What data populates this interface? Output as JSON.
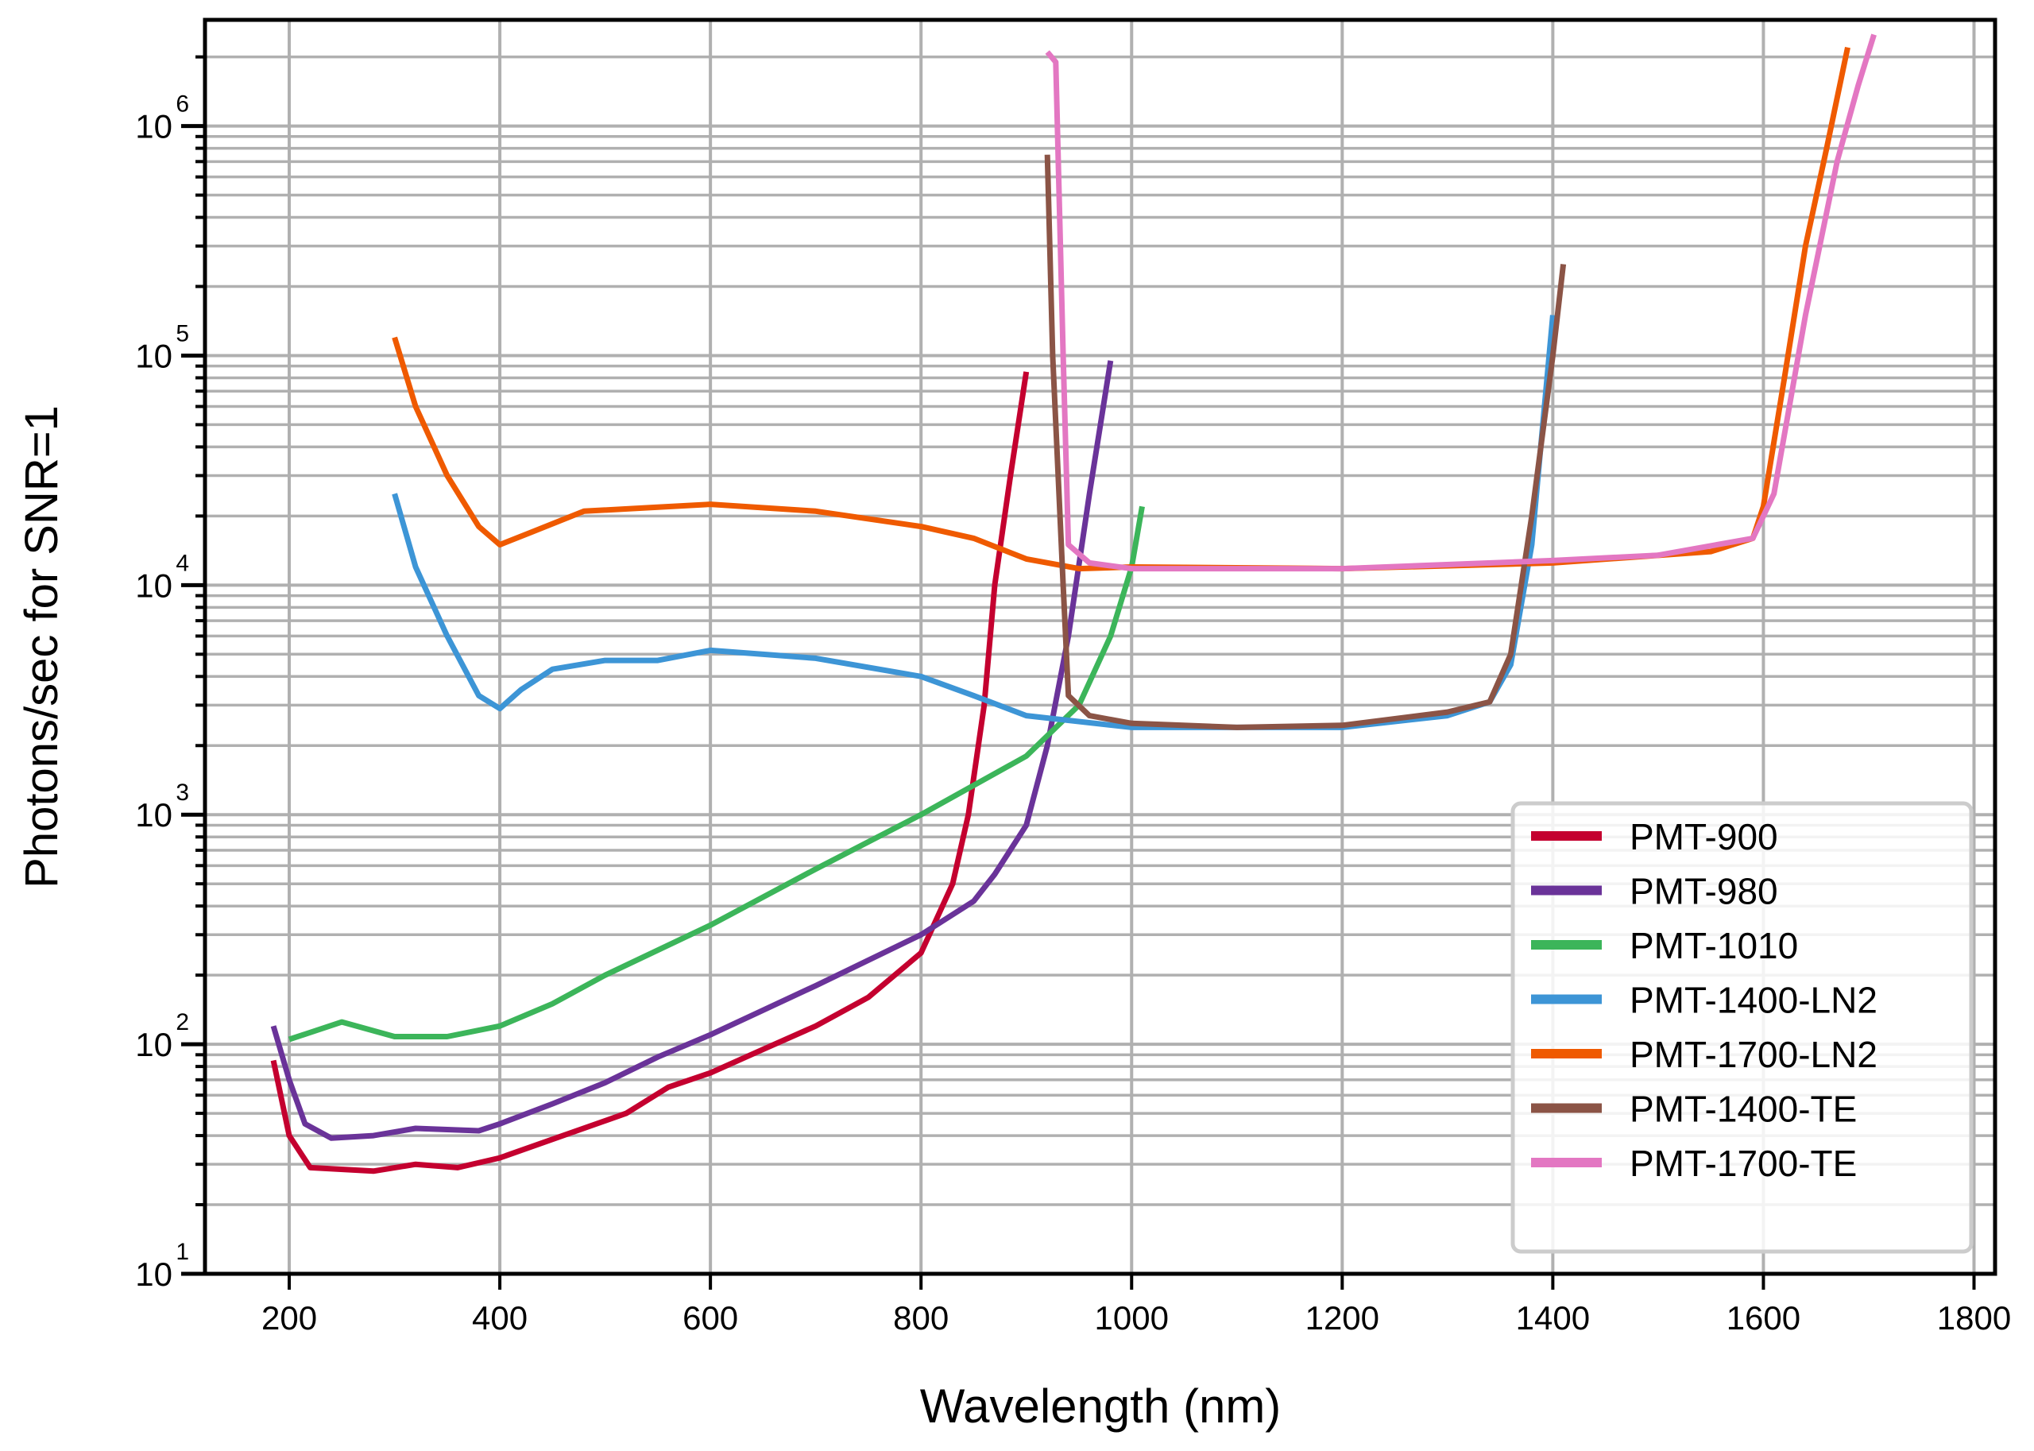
{
  "chart_data": {
    "type": "line",
    "title": "",
    "xlabel": "Wavelength (nm)",
    "ylabel": "Photons/sec for SNR=1",
    "xlim": [
      120,
      1820
    ],
    "ylim": [
      10,
      2900000
    ],
    "yscale": "log",
    "grid": true,
    "legend_position": "bottom-right",
    "xticks": [
      200,
      400,
      600,
      800,
      1000,
      1200,
      1400,
      1600,
      1800
    ],
    "yticks": [
      {
        "base": "10",
        "exp": "1",
        "value": 10
      },
      {
        "base": "10",
        "exp": "2",
        "value": 100
      },
      {
        "base": "10",
        "exp": "3",
        "value": 1000
      },
      {
        "base": "10",
        "exp": "4",
        "value": 10000
      },
      {
        "base": "10",
        "exp": "5",
        "value": 100000
      },
      {
        "base": "10",
        "exp": "6",
        "value": 1000000
      }
    ],
    "series": [
      {
        "name": "PMT-900",
        "color": "#c4002f",
        "x": [
          185,
          200,
          220,
          280,
          320,
          360,
          400,
          460,
          520,
          560,
          600,
          650,
          700,
          750,
          800,
          830,
          845,
          860,
          870,
          885,
          900
        ],
        "y": [
          85,
          40,
          29,
          28,
          30,
          29,
          32,
          40,
          50,
          65,
          75,
          95,
          120,
          160,
          250,
          500,
          1000,
          3000,
          10000,
          30000,
          85000
        ]
      },
      {
        "name": "PMT-980",
        "color": "#6a3399",
        "x": [
          185,
          200,
          215,
          240,
          280,
          320,
          380,
          400,
          450,
          500,
          550,
          600,
          700,
          800,
          850,
          870,
          900,
          920,
          940,
          960,
          980
        ],
        "y": [
          120,
          70,
          45,
          39,
          40,
          43,
          42,
          45,
          55,
          68,
          88,
          110,
          180,
          300,
          420,
          550,
          900,
          2000,
          6000,
          25000,
          95000
        ]
      },
      {
        "name": "PMT-1010",
        "color": "#3cb55a",
        "x": [
          200,
          250,
          300,
          350,
          400,
          450,
          500,
          600,
          700,
          800,
          900,
          950,
          980,
          1000,
          1010
        ],
        "y": [
          105,
          125,
          108,
          108,
          120,
          150,
          200,
          330,
          580,
          1000,
          1800,
          3000,
          6000,
          12000,
          22000
        ]
      },
      {
        "name": "PMT-1400-LN2",
        "color": "#3d95d6",
        "x": [
          300,
          320,
          350,
          380,
          400,
          420,
          450,
          500,
          550,
          600,
          700,
          800,
          850,
          900,
          1000,
          1200,
          1300,
          1340,
          1360,
          1380,
          1400
        ],
        "y": [
          25000,
          12000,
          6000,
          3300,
          2900,
          3500,
          4300,
          4700,
          4700,
          5200,
          4800,
          4000,
          3300,
          2700,
          2400,
          2400,
          2700,
          3100,
          4500,
          15000,
          150000
        ]
      },
      {
        "name": "PMT-1700-LN2",
        "color": "#ef5a00",
        "x": [
          300,
          320,
          350,
          380,
          400,
          430,
          480,
          600,
          700,
          800,
          850,
          900,
          950,
          1000,
          1200,
          1400,
          1550,
          1590,
          1600,
          1620,
          1640,
          1660,
          1680
        ],
        "y": [
          120000,
          60000,
          30000,
          18000,
          15000,
          17000,
          21000,
          22500,
          21000,
          18000,
          16000,
          13000,
          11800,
          12000,
          11800,
          12500,
          14000,
          16000,
          22000,
          80000,
          300000,
          800000,
          2200000
        ]
      },
      {
        "name": "PMT-1400-TE",
        "color": "#8b5446",
        "x": [
          920,
          925,
          935,
          940,
          960,
          1000,
          1100,
          1200,
          1300,
          1340,
          1360,
          1380,
          1400,
          1410
        ],
        "y": [
          750000,
          100000,
          10000,
          3300,
          2700,
          2500,
          2400,
          2450,
          2800,
          3100,
          5000,
          20000,
          100000,
          250000
        ]
      },
      {
        "name": "PMT-1700-TE",
        "color": "#e377c2",
        "x": [
          920,
          928,
          935,
          940,
          960,
          1000,
          1200,
          1400,
          1500,
          1590,
          1610,
          1640,
          1670,
          1690,
          1705
        ],
        "y": [
          2100000,
          1900000,
          100000,
          15000,
          12500,
          11800,
          11800,
          12800,
          13500,
          16000,
          25000,
          150000,
          700000,
          1500000,
          2500000
        ]
      }
    ]
  }
}
